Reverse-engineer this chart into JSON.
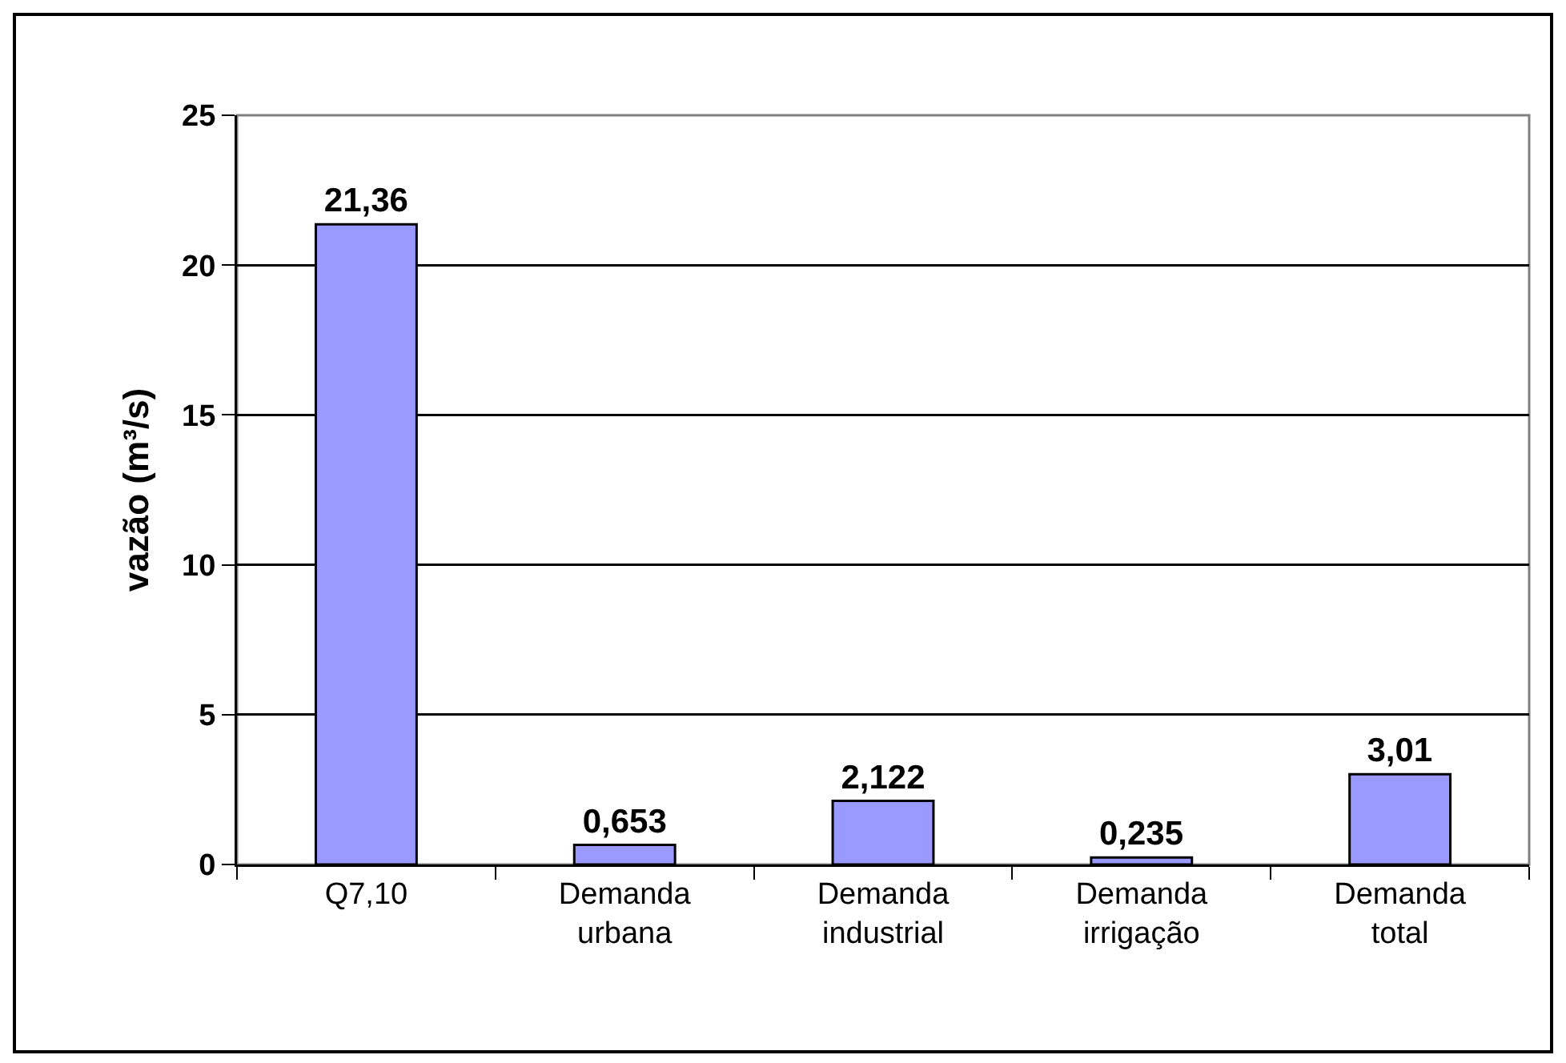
{
  "chart_data": {
    "type": "bar",
    "ylabel": "vazão (m³/s)",
    "categories": [
      "Q7,10",
      "Demanda urbana",
      "Demanda industrial",
      "Demanda irrigação",
      "Demanda total"
    ],
    "values": [
      21.36,
      0.653,
      2.122,
      0.235,
      3.01
    ],
    "value_labels": [
      "21,36",
      "0,653",
      "2,122",
      "0,235",
      "3,01"
    ],
    "color": "#9999ff",
    "ylim": [
      0,
      25
    ],
    "yticks": [
      0,
      5,
      10,
      15,
      20,
      25
    ],
    "grid": "y",
    "legend": false
  }
}
